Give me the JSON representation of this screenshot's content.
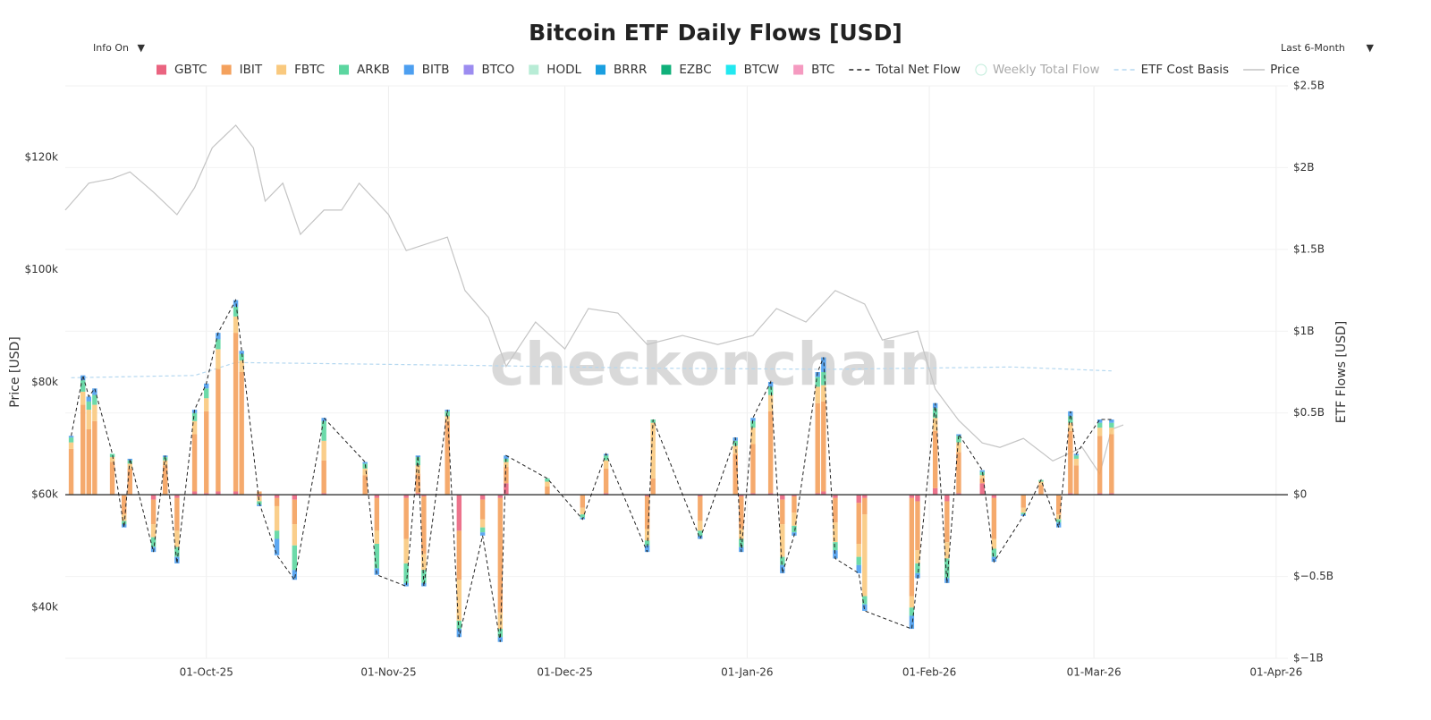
{
  "chart_data": {
    "type": "bar",
    "stacked": true,
    "title": "Bitcoin ETF Daily Flows [USD]",
    "y_label": "Price [USD]",
    "y2_label": "ETF Flows [USD]",
    "watermark": "checkonchain",
    "controls": {
      "info": "Info On",
      "range": "Last 6-Month"
    },
    "x": [
      "2025-09-08",
      "2025-09-10",
      "2025-09-11",
      "2025-09-12",
      "2025-09-15",
      "2025-09-17",
      "2025-09-18",
      "2025-09-22",
      "2025-09-24",
      "2025-09-26",
      "2025-09-29",
      "2025-10-01",
      "2025-10-03",
      "2025-10-06",
      "2025-10-07",
      "2025-10-10",
      "2025-10-13",
      "2025-10-16",
      "2025-10-21",
      "2025-10-28",
      "2025-10-30",
      "2025-11-04",
      "2025-11-06",
      "2025-11-07",
      "2025-11-11",
      "2025-11-13",
      "2025-11-17",
      "2025-11-20",
      "2025-11-21",
      "2025-11-28",
      "2025-12-04",
      "2025-12-08",
      "2025-12-15",
      "2025-12-16",
      "2025-12-24",
      "2025-12-30",
      "2025-12-31",
      "2026-01-02",
      "2026-01-05",
      "2026-01-07",
      "2026-01-09",
      "2026-01-13",
      "2026-01-14",
      "2026-01-16",
      "2026-01-20",
      "2026-01-21",
      "2026-01-29",
      "2026-01-30",
      "2026-02-02",
      "2026-02-04",
      "2026-02-06",
      "2026-02-10",
      "2026-02-12",
      "2026-02-17",
      "2026-02-20",
      "2026-02-23",
      "2026-02-25",
      "2026-02-26",
      "2026-03-02",
      "2026-03-04"
    ],
    "xlim": [
      "2025-09-07",
      "2026-04-03"
    ],
    "xticks": [
      {
        "value": "2025-10-01",
        "label": "01-Oct-25"
      },
      {
        "value": "2025-11-01",
        "label": "01-Nov-25"
      },
      {
        "value": "2025-12-01",
        "label": "01-Dec-25"
      },
      {
        "value": "2026-01-01",
        "label": "01-Jan-26"
      },
      {
        "value": "2026-02-01",
        "label": "01-Feb-26"
      },
      {
        "value": "2026-03-01",
        "label": "01-Mar-26"
      },
      {
        "value": "2026-04-01",
        "label": "01-Apr-26"
      }
    ],
    "ylim": [
      30900,
      132700
    ],
    "yticks": [
      {
        "value": 40000,
        "label": "$40k"
      },
      {
        "value": 60000,
        "label": "$60k"
      },
      {
        "value": 80000,
        "label": "$80k"
      },
      {
        "value": 100000,
        "label": "$100k"
      },
      {
        "value": 120000,
        "label": "$120k"
      }
    ],
    "y2lim": [
      -1000000000.0,
      2500000000.0
    ],
    "y2ticks": [
      {
        "value": -1000000000.0,
        "label": "$−1B"
      },
      {
        "value": -500000000.0,
        "label": "$−0.5B"
      },
      {
        "value": 0,
        "label": "$0"
      },
      {
        "value": 500000000.0,
        "label": "$0.5B"
      },
      {
        "value": 1000000000.0,
        "label": "$1B"
      },
      {
        "value": 1500000000.0,
        "label": "$1.5B"
      },
      {
        "value": 2000000000.0,
        "label": "$2B"
      },
      {
        "value": 2500000000.0,
        "label": "$2.5B"
      }
    ],
    "grid": true,
    "series": [
      {
        "name": "GBTC",
        "color": "#ea6480",
        "axis": "y2",
        "values": [
          0,
          0,
          0,
          0,
          0,
          0,
          0,
          -30000000.0,
          0,
          -20000000.0,
          20000000.0,
          10000000.0,
          20000000.0,
          20000000.0,
          0,
          -10000000.0,
          -20000000.0,
          -30000000.0,
          10000000.0,
          0,
          -20000000.0,
          -20000000.0,
          10000000.0,
          -10000000.0,
          0,
          -220000000.0,
          -30000000.0,
          -20000000.0,
          70000000.0,
          0,
          0,
          10000000.0,
          -10000000.0,
          0,
          -10000000.0,
          0,
          -10000000.0,
          10000000.0,
          10000000.0,
          -30000000.0,
          -10000000.0,
          10000000.0,
          20000000.0,
          -20000000.0,
          -50000000.0,
          -20000000.0,
          -20000000.0,
          -40000000.0,
          40000000.0,
          -40000000.0,
          10000000.0,
          70000000.0,
          -20000000.0,
          0,
          0,
          0,
          10000000.0,
          0,
          10000000.0,
          10000000.0
        ]
      },
      {
        "name": "IBIT",
        "color": "#f4a15d",
        "axis": "y2",
        "values": [
          280000000.0,
          550000000.0,
          400000000.0,
          450000000.0,
          200000000.0,
          -120000000.0,
          160000000.0,
          -150000000.0,
          180000000.0,
          -200000000.0,
          350000000.0,
          500000000.0,
          750000000.0,
          970000000.0,
          750000000.0,
          20000000.0,
          -50000000.0,
          -150000000.0,
          200000000.0,
          120000000.0,
          -200000000.0,
          -250000000.0,
          120000000.0,
          -350000000.0,
          450000000.0,
          -300000000.0,
          -120000000.0,
          -700000000.0,
          100000000.0,
          50000000.0,
          -80000000.0,
          150000000.0,
          -200000000.0,
          100000000.0,
          -150000000.0,
          250000000.0,
          -200000000.0,
          300000000.0,
          500000000.0,
          -150000000.0,
          -100000000.0,
          550000000.0,
          550000000.0,
          -150000000.0,
          -250000000.0,
          -100000000.0,
          -600000000.0,
          -300000000.0,
          350000000.0,
          -250000000.0,
          250000000.0,
          30000000.0,
          -250000000.0,
          -80000000.0,
          60000000.0,
          -120000000.0,
          380000000.0,
          180000000.0,
          350000000.0,
          360000000.0
        ]
      },
      {
        "name": "FBTC",
        "color": "#f9c97e",
        "axis": "y2",
        "values": [
          40000000.0,
          80000000.0,
          120000000.0,
          100000000.0,
          30000000.0,
          -40000000.0,
          30000000.0,
          -80000000.0,
          30000000.0,
          -100000000.0,
          80000000.0,
          80000000.0,
          120000000.0,
          100000000.0,
          70000000.0,
          -30000000.0,
          -150000000.0,
          -130000000.0,
          120000000.0,
          40000000.0,
          -80000000.0,
          -150000000.0,
          50000000.0,
          -100000000.0,
          30000000.0,
          -250000000.0,
          -50000000.0,
          -100000000.0,
          30000000.0,
          30000000.0,
          -40000000.0,
          50000000.0,
          -70000000.0,
          340000000.0,
          -60000000.0,
          50000000.0,
          -60000000.0,
          100000000.0,
          100000000.0,
          -200000000.0,
          -80000000.0,
          100000000.0,
          100000000.0,
          -120000000.0,
          -80000000.0,
          -500000000.0,
          -70000000.0,
          -80000000.0,
          80000000.0,
          -100000000.0,
          60000000.0,
          20000000.0,
          -60000000.0,
          -30000000.0,
          20000000.0,
          -30000000.0,
          50000000.0,
          40000000.0,
          50000000.0,
          40000000.0
        ]
      },
      {
        "name": "ARKB",
        "color": "#5cd6a0",
        "axis": "y2",
        "values": [
          30000000.0,
          70000000.0,
          50000000.0,
          60000000.0,
          20000000.0,
          -20000000.0,
          20000000.0,
          -60000000.0,
          20000000.0,
          -60000000.0,
          50000000.0,
          60000000.0,
          60000000.0,
          60000000.0,
          40000000.0,
          -20000000.0,
          -50000000.0,
          -150000000.0,
          120000000.0,
          30000000.0,
          -150000000.0,
          -120000000.0,
          50000000.0,
          -80000000.0,
          30000000.0,
          -50000000.0,
          -30000000.0,
          -50000000.0,
          20000000.0,
          20000000.0,
          -20000000.0,
          30000000.0,
          -30000000.0,
          20000000.0,
          -30000000.0,
          30000000.0,
          -50000000.0,
          40000000.0,
          50000000.0,
          -50000000.0,
          -40000000.0,
          60000000.0,
          80000000.0,
          -50000000.0,
          -50000000.0,
          -50000000.0,
          -50000000.0,
          -60000000.0,
          60000000.0,
          -120000000.0,
          40000000.0,
          20000000.0,
          -50000000.0,
          -10000000.0,
          10000000.0,
          -20000000.0,
          40000000.0,
          20000000.0,
          30000000.0,
          30000000.0
        ]
      },
      {
        "name": "BITB",
        "color": "#4d9ff0",
        "axis": "y2",
        "values": [
          10000000.0,
          30000000.0,
          30000000.0,
          40000000.0,
          0,
          -20000000.0,
          10000000.0,
          -30000000.0,
          10000000.0,
          -40000000.0,
          20000000.0,
          30000000.0,
          40000000.0,
          40000000.0,
          20000000.0,
          -10000000.0,
          -100000000.0,
          -60000000.0,
          20000000.0,
          10000000.0,
          -40000000.0,
          -20000000.0,
          10000000.0,
          -20000000.0,
          10000000.0,
          -50000000.0,
          -20000000.0,
          -30000000.0,
          20000000.0,
          0,
          -10000000.0,
          10000000.0,
          -40000000.0,
          0,
          -20000000.0,
          20000000.0,
          -30000000.0,
          20000000.0,
          30000000.0,
          -50000000.0,
          -20000000.0,
          30000000.0,
          90000000.0,
          -50000000.0,
          -50000000.0,
          -40000000.0,
          -80000000.0,
          -30000000.0,
          30000000.0,
          -30000000.0,
          10000000.0,
          10000000.0,
          -30000000.0,
          -10000000.0,
          0,
          -30000000.0,
          30000000.0,
          10000000.0,
          20000000.0,
          20000000.0
        ]
      },
      {
        "name": "BTCO",
        "color": "#9c8cf0"
      },
      {
        "name": "HODL",
        "color": "#b8ecd6"
      },
      {
        "name": "BRRR",
        "color": "#1a9fe0"
      },
      {
        "name": "EZBC",
        "color": "#10b07a"
      },
      {
        "name": "BTCW",
        "color": "#22e8f0"
      },
      {
        "name": "BTC",
        "color": "#f59ac0"
      },
      {
        "name": "Total Net Flow",
        "color": "#222222",
        "type": "line",
        "dash": true,
        "axis": "y2",
        "values": [
          360000000.0,
          730000000.0,
          600000000.0,
          650000000.0,
          250000000.0,
          -200000000.0,
          220000000.0,
          -350000000.0,
          240000000.0,
          -420000000.0,
          520000000.0,
          680000000.0,
          990000000.0,
          1190000000.0,
          880000000.0,
          -50000000.0,
          -370000000.0,
          -520000000.0,
          470000000.0,
          200000000.0,
          -490000000.0,
          -560000000.0,
          240000000.0,
          -560000000.0,
          520000000.0,
          -870000000.0,
          -250000000.0,
          -900000000.0,
          240000000.0,
          100000000.0,
          -150000000.0,
          250000000.0,
          -350000000.0,
          460000000.0,
          -270000000.0,
          350000000.0,
          -350000000.0,
          470000000.0,
          690000000.0,
          -480000000.0,
          -250000000.0,
          750000000.0,
          840000000.0,
          -390000000.0,
          -480000000.0,
          -710000000.0,
          -820000000.0,
          -510000000.0,
          560000000.0,
          -540000000.0,
          370000000.0,
          150000000.0,
          -410000000.0,
          -130000000.0,
          90000000.0,
          -200000000.0,
          510000000.0,
          250000000.0,
          460000000.0,
          460000000.0
        ]
      },
      {
        "name": "Weekly Total Flow",
        "color": "#7fd9b5",
        "type": "marker",
        "visible": false
      },
      {
        "name": "ETF Cost Basis",
        "color": "#b5d8f0",
        "type": "line",
        "dash": true,
        "axis": "y",
        "x": [
          "2025-09-08",
          "2025-09-29",
          "2025-10-06",
          "2025-11-15",
          "2025-12-15",
          "2026-01-15",
          "2026-02-15",
          "2026-03-04"
        ],
        "values": [
          80800,
          81200,
          83500,
          83000,
          82500,
          82300,
          82700,
          82000
        ]
      },
      {
        "name": "Price",
        "color": "#c4c4c4",
        "type": "line",
        "axis": "y",
        "x": [
          "2025-09-07",
          "2025-09-11",
          "2025-09-15",
          "2025-09-18",
          "2025-09-22",
          "2025-09-26",
          "2025-09-29",
          "2025-10-02",
          "2025-10-06",
          "2025-10-09",
          "2025-10-11",
          "2025-10-14",
          "2025-10-17",
          "2025-10-21",
          "2025-10-24",
          "2025-10-27",
          "2025-11-01",
          "2025-11-04",
          "2025-11-11",
          "2025-11-14",
          "2025-11-18",
          "2025-11-21",
          "2025-11-26",
          "2025-12-01",
          "2025-12-05",
          "2025-12-10",
          "2025-12-15",
          "2025-12-21",
          "2025-12-27",
          "2026-01-02",
          "2026-01-06",
          "2026-01-11",
          "2026-01-16",
          "2026-01-21",
          "2026-01-24",
          "2026-01-30",
          "2026-02-02",
          "2026-02-06",
          "2026-02-10",
          "2026-02-13",
          "2026-02-17",
          "2026-02-22",
          "2026-02-27",
          "2026-03-02",
          "2026-03-04",
          "2026-03-06"
        ],
        "values": [
          110600,
          115400,
          116200,
          117400,
          113800,
          109800,
          114600,
          121700,
          125700,
          121700,
          112200,
          115400,
          106300,
          110600,
          110600,
          115400,
          109800,
          103400,
          105800,
          96300,
          91500,
          82800,
          90700,
          85900,
          93100,
          92300,
          86700,
          88300,
          86700,
          88300,
          93100,
          90700,
          96300,
          93900,
          87500,
          89100,
          78800,
          73200,
          69200,
          68400,
          70000,
          66000,
          68400,
          63700,
          71600,
          72400
        ]
      }
    ]
  }
}
